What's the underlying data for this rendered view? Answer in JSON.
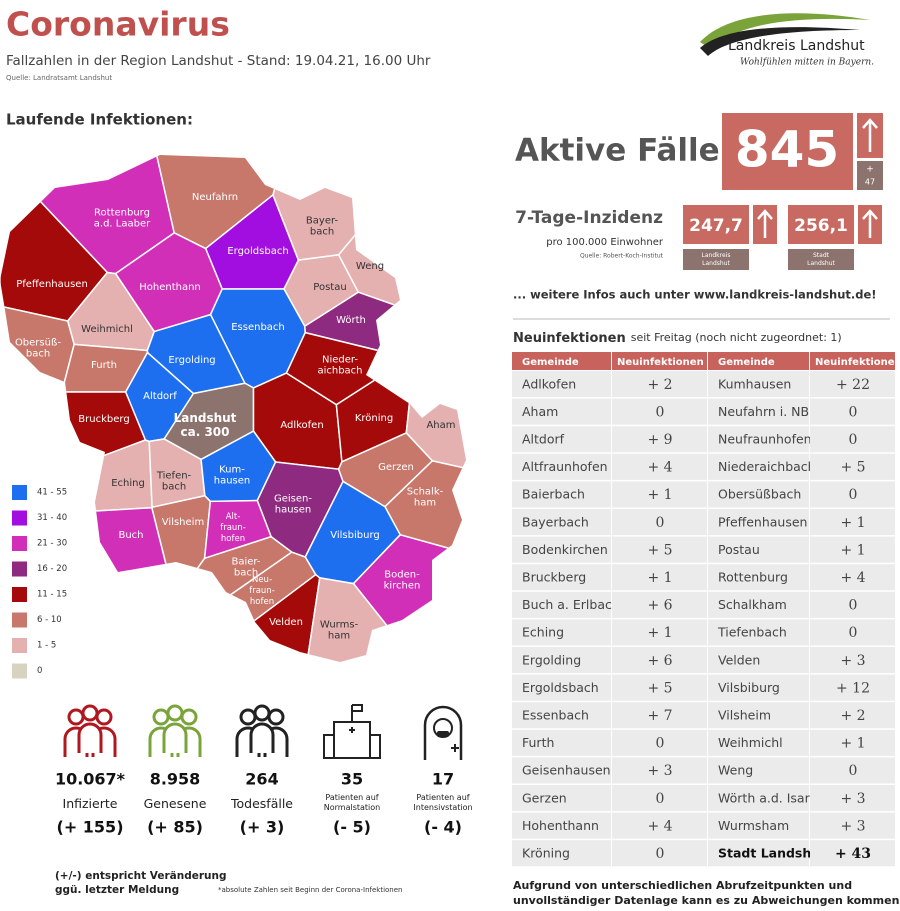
{
  "header": {
    "title": "Coronavirus",
    "subtitle": "Fallzahlen in der Region Landshut - Stand: 19.04.21, 16.00 Uhr",
    "source": "Quelle: Landratsamt Landshut"
  },
  "logo": {
    "name": "Landkreis Landshut",
    "tagline": "Wohlfühlen mitten in Bayern."
  },
  "map": {
    "heading": "Laufende Infektionen:",
    "legend": [
      {
        "label": "41 - 55",
        "color": "#1e6ff0"
      },
      {
        "label": "31 - 40",
        "color": "#a20ee0"
      },
      {
        "label": "21 - 30",
        "color": "#d22fb9"
      },
      {
        "label": "16 - 20",
        "color": "#8e2a7f"
      },
      {
        "label": "11 - 15",
        "color": "#a50a0a"
      },
      {
        "label": "6 - 10",
        "color": "#c8776b"
      },
      {
        "label": "1 - 5",
        "color": "#e5b0b0"
      },
      {
        "label": "0",
        "color": "#d8d3c0"
      }
    ],
    "regions": [
      {
        "lines": [
          "Rottenburg",
          "a.d. Laaber"
        ],
        "color": "#d22fb9"
      },
      {
        "lines": [
          "Neufahrn"
        ],
        "color": "#c8776b"
      },
      {
        "lines": [
          "Ergoldsbach"
        ],
        "color": "#a20ee0"
      },
      {
        "lines": [
          "Bayer-",
          "bach"
        ],
        "color": "#e5b0b0"
      },
      {
        "lines": [
          "Weng"
        ],
        "color": "#e5b0b0"
      },
      {
        "lines": [
          "Postau"
        ],
        "color": "#e5b0b0"
      },
      {
        "lines": [
          "Wörth"
        ],
        "color": "#8e2a7f"
      },
      {
        "lines": [
          "Pfeffenhausen"
        ],
        "color": "#a50a0a"
      },
      {
        "lines": [
          "Hohenthann"
        ],
        "color": "#d22fb9"
      },
      {
        "lines": [
          "Essenbach"
        ],
        "color": "#1e6ff0"
      },
      {
        "lines": [
          "Weihmichl"
        ],
        "color": "#e5b0b0"
      },
      {
        "lines": [
          "Obersüß-",
          "bach"
        ],
        "color": "#c8776b"
      },
      {
        "lines": [
          "Ergolding"
        ],
        "color": "#1e6ff0"
      },
      {
        "lines": [
          "Furth"
        ],
        "color": "#c8776b"
      },
      {
        "lines": [
          "Nieder-",
          "aichbach"
        ],
        "color": "#a50a0a"
      },
      {
        "lines": [
          "Altdorf"
        ],
        "color": "#1e6ff0"
      },
      {
        "lines": [
          "Bruckberg"
        ],
        "color": "#a50a0a"
      },
      {
        "lines": [
          "Landshut",
          "ca. 300"
        ],
        "color": "#8c736e"
      },
      {
        "lines": [
          "Adlkofen"
        ],
        "color": "#a50a0a"
      },
      {
        "lines": [
          "Kröning"
        ],
        "color": "#a50a0a"
      },
      {
        "lines": [
          "Aham"
        ],
        "color": "#e5b0b0"
      },
      {
        "lines": [
          "Eching"
        ],
        "color": "#e5b0b0"
      },
      {
        "lines": [
          "Tiefen-",
          "bach"
        ],
        "color": "#e5b0b0"
      },
      {
        "lines": [
          "Kum-",
          "hausen"
        ],
        "color": "#1e6ff0"
      },
      {
        "lines": [
          "Geisen-",
          "hausen"
        ],
        "color": "#8e2a7f"
      },
      {
        "lines": [
          "Gerzen"
        ],
        "color": "#c8776b"
      },
      {
        "lines": [
          "Schalk-",
          "ham"
        ],
        "color": "#c8776b"
      },
      {
        "lines": [
          "Vilsheim"
        ],
        "color": "#c8776b"
      },
      {
        "lines": [
          "Alt-",
          "fraun-",
          "hofen"
        ],
        "color": "#d22fb9"
      },
      {
        "lines": [
          "Buch"
        ],
        "color": "#d22fb9"
      },
      {
        "lines": [
          "Vilsbiburg"
        ],
        "color": "#1e6ff0"
      },
      {
        "lines": [
          "Baier-",
          "bach"
        ],
        "color": "#c8776b"
      },
      {
        "lines": [
          "Neu-",
          "fraun-",
          "hofen"
        ],
        "color": "#c8776b"
      },
      {
        "lines": [
          "Boden-",
          "kirchen"
        ],
        "color": "#d22fb9"
      },
      {
        "lines": [
          "Velden"
        ],
        "color": "#a50a0a"
      },
      {
        "lines": [
          "Wurms-",
          "ham"
        ],
        "color": "#e5b0b0"
      }
    ]
  },
  "active": {
    "label": "Aktive Fälle",
    "value": "845",
    "change_sign": "+",
    "change": "47"
  },
  "incidence": {
    "title": "7-Tage-Inzidenz",
    "subtitle": "pro 100.000 Einwohner",
    "source": "Quelle: Robert-Koch-Institut",
    "items": [
      {
        "value": "247,7",
        "lines": [
          "Landkreis",
          "Landshut"
        ]
      },
      {
        "value": "256,1",
        "lines": [
          "Stadt",
          "Landshut"
        ]
      }
    ]
  },
  "more_info": "... weitere Infos auch unter www.landkreis-landshut.de!",
  "table": {
    "heading": "Neuinfektionen",
    "heading_note": "seit Freitag (noch nicht zugeordnet: 1)",
    "columns": [
      "Gemeinde",
      "Neuinfektionen",
      "Gemeinde",
      "Neuinfektionen"
    ],
    "rows": [
      [
        "Adlkofen",
        "+ 2",
        "Kumhausen",
        "+ 22"
      ],
      [
        "Aham",
        "0",
        "Neufahrn i. NB",
        "0"
      ],
      [
        "Altdorf",
        "+ 9",
        "Neufraunhofen",
        "0"
      ],
      [
        "Altfraunhofen",
        "+ 4",
        "Niederaichbach",
        "+ 5"
      ],
      [
        "Baierbach",
        "+ 1",
        "Obersüßbach",
        "0"
      ],
      [
        "Bayerbach",
        "0",
        "Pfeffenhausen",
        "+ 1"
      ],
      [
        "Bodenkirchen",
        "+ 5",
        "Postau",
        "+ 1"
      ],
      [
        "Bruckberg",
        "+ 1",
        "Rottenburg",
        "+ 4"
      ],
      [
        "Buch a. Erlbach",
        "+ 6",
        "Schalkham",
        "0"
      ],
      [
        "Eching",
        "+ 1",
        "Tiefenbach",
        "0"
      ],
      [
        "Ergolding",
        "+ 6",
        "Velden",
        "+ 3"
      ],
      [
        "Ergoldsbach",
        "+ 5",
        "Vilsbiburg",
        "+ 12"
      ],
      [
        "Essenbach",
        "+ 7",
        "Vilsheim",
        "+ 2"
      ],
      [
        "Furth",
        "0",
        "Weihmichl",
        "+ 1"
      ],
      [
        "Geisenhausen",
        "+ 3",
        "Weng",
        "0"
      ],
      [
        "Gerzen",
        "0",
        "Wörth a.d. Isar",
        "+ 3"
      ],
      [
        "Hohenthann",
        "+ 4",
        "Wurmsham",
        "+ 3"
      ],
      [
        "Kröning",
        "0",
        "Stadt Landshut",
        "+ 43"
      ]
    ],
    "footnote": [
      "Aufgrund von unterschiedlichen Abrufzeitpunkten und",
      "unvollständiger Datenlage kann es zu Abweichungen kommen!"
    ]
  },
  "stats": [
    {
      "value": "10.067*",
      "lines": [
        "Infizierte"
      ],
      "change": "(+ 155)"
    },
    {
      "value": "8.958",
      "lines": [
        "Genesene"
      ],
      "change": "(+ 85)"
    },
    {
      "value": "264",
      "lines": [
        "Todesfälle"
      ],
      "change": "(+ 3)"
    },
    {
      "value": "35",
      "lines": [
        "Patienten auf",
        "Normalstation"
      ],
      "change": "(- 5)"
    },
    {
      "value": "17",
      "lines": [
        "Patienten auf",
        "Intensivstation"
      ],
      "change": "(- 4)"
    }
  ],
  "notes": {
    "change_note": [
      "(+/-) entspricht Veränderung",
      "ggü. letzter Meldung"
    ],
    "absolute_note": "*absolute Zahlen seit Beginn der Corona-Infektionen"
  }
}
